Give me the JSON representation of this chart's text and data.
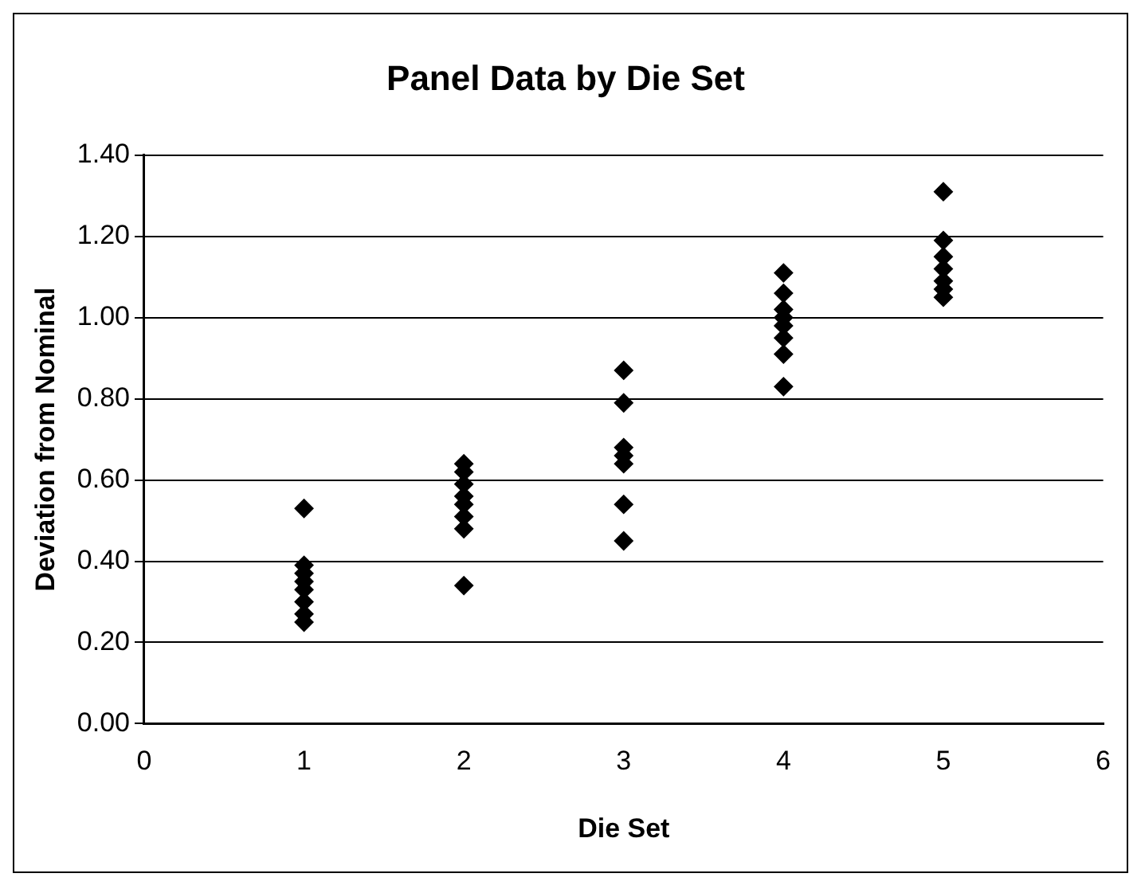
{
  "chart_data": {
    "type": "scatter",
    "title": "Panel Data by Die Set",
    "xlabel": "Die Set",
    "ylabel": "Deviation from Nominal",
    "x": [
      1,
      1,
      1,
      1,
      1,
      1,
      1,
      1,
      2,
      2,
      2,
      2,
      2,
      2,
      2,
      2,
      3,
      3,
      3,
      3,
      3,
      3,
      3,
      4,
      4,
      4,
      4,
      4,
      4,
      4,
      4,
      5,
      5,
      5,
      5,
      5,
      5,
      5
    ],
    "series": [
      {
        "color": "#000000",
        "values": [
          0.53,
          0.39,
          0.37,
          0.35,
          0.33,
          0.3,
          0.27,
          0.25,
          0.64,
          0.62,
          0.59,
          0.56,
          0.54,
          0.51,
          0.48,
          0.34,
          0.87,
          0.79,
          0.68,
          0.66,
          0.64,
          0.54,
          0.45,
          1.11,
          1.06,
          1.02,
          1.0,
          0.98,
          0.95,
          0.91,
          0.83,
          1.31,
          1.19,
          1.15,
          1.12,
          1.09,
          1.07,
          1.05
        ]
      }
    ],
    "xlim": [
      0,
      6
    ],
    "xticks": [
      0,
      1,
      2,
      3,
      4,
      5,
      6
    ],
    "ylim": [
      0,
      1.4
    ],
    "yticks": [
      {
        "value": 0,
        "label": "0.00"
      },
      {
        "value": 0.2,
        "label": "0.20"
      },
      {
        "value": 0.4,
        "label": "0.40"
      },
      {
        "value": 0.6,
        "label": "0.60"
      },
      {
        "value": 0.8,
        "label": "0.80"
      },
      {
        "value": 1.0,
        "label": "1.00"
      },
      {
        "value": 1.2,
        "label": "1.20"
      },
      {
        "value": 1.4,
        "label": "1.40"
      }
    ],
    "grid": "y",
    "legend": false,
    "marker": "diamond"
  }
}
